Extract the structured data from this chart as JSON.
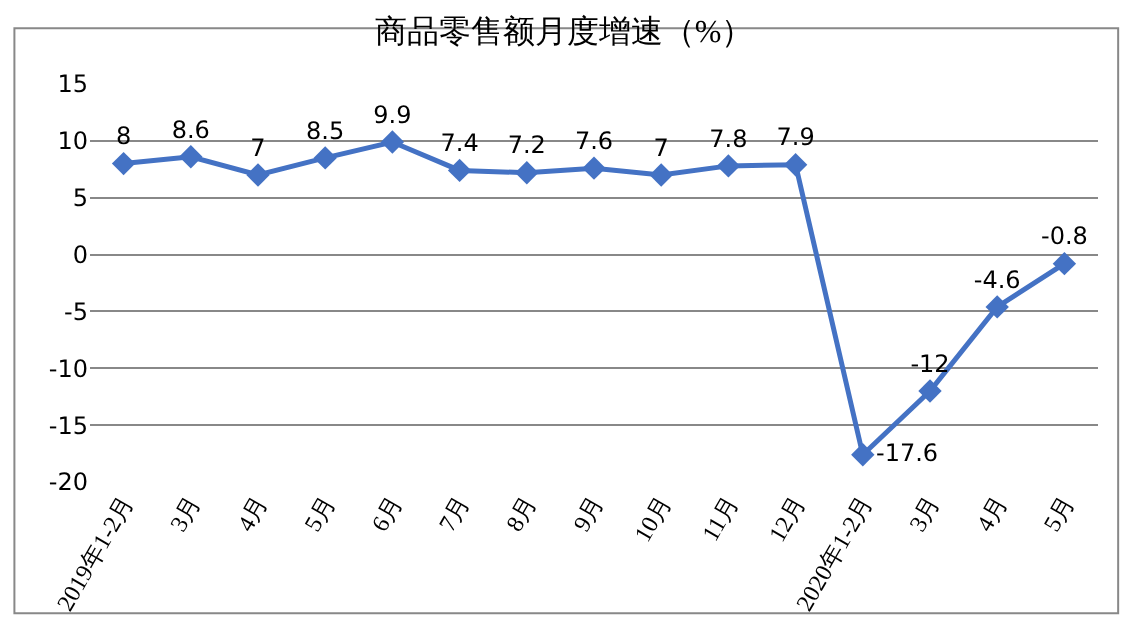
{
  "chart_data": {
    "type": "line",
    "title": "商品零售额月度增速（%）",
    "categories": [
      "2019年1-2月",
      "3月",
      "4月",
      "5月",
      "6月",
      "7月",
      "8月",
      "9月",
      "10月",
      "11月",
      "12月",
      "2020年1-2月",
      "3月",
      "4月",
      "5月"
    ],
    "series": [
      {
        "color": "#4472c4",
        "values": [
          8,
          8.6,
          7,
          8.5,
          9.9,
          7.4,
          7.2,
          7.6,
          7,
          7.8,
          7.9,
          -17.6,
          -12,
          -4.6,
          -0.8
        ]
      }
    ],
    "ylim": [
      -20,
      15
    ],
    "yticks": [
      -20,
      -15,
      -10,
      -5,
      0,
      5,
      10,
      15
    ],
    "grid": "y",
    "marker": "diamond",
    "line_style": "solid",
    "data_labels": true
  }
}
